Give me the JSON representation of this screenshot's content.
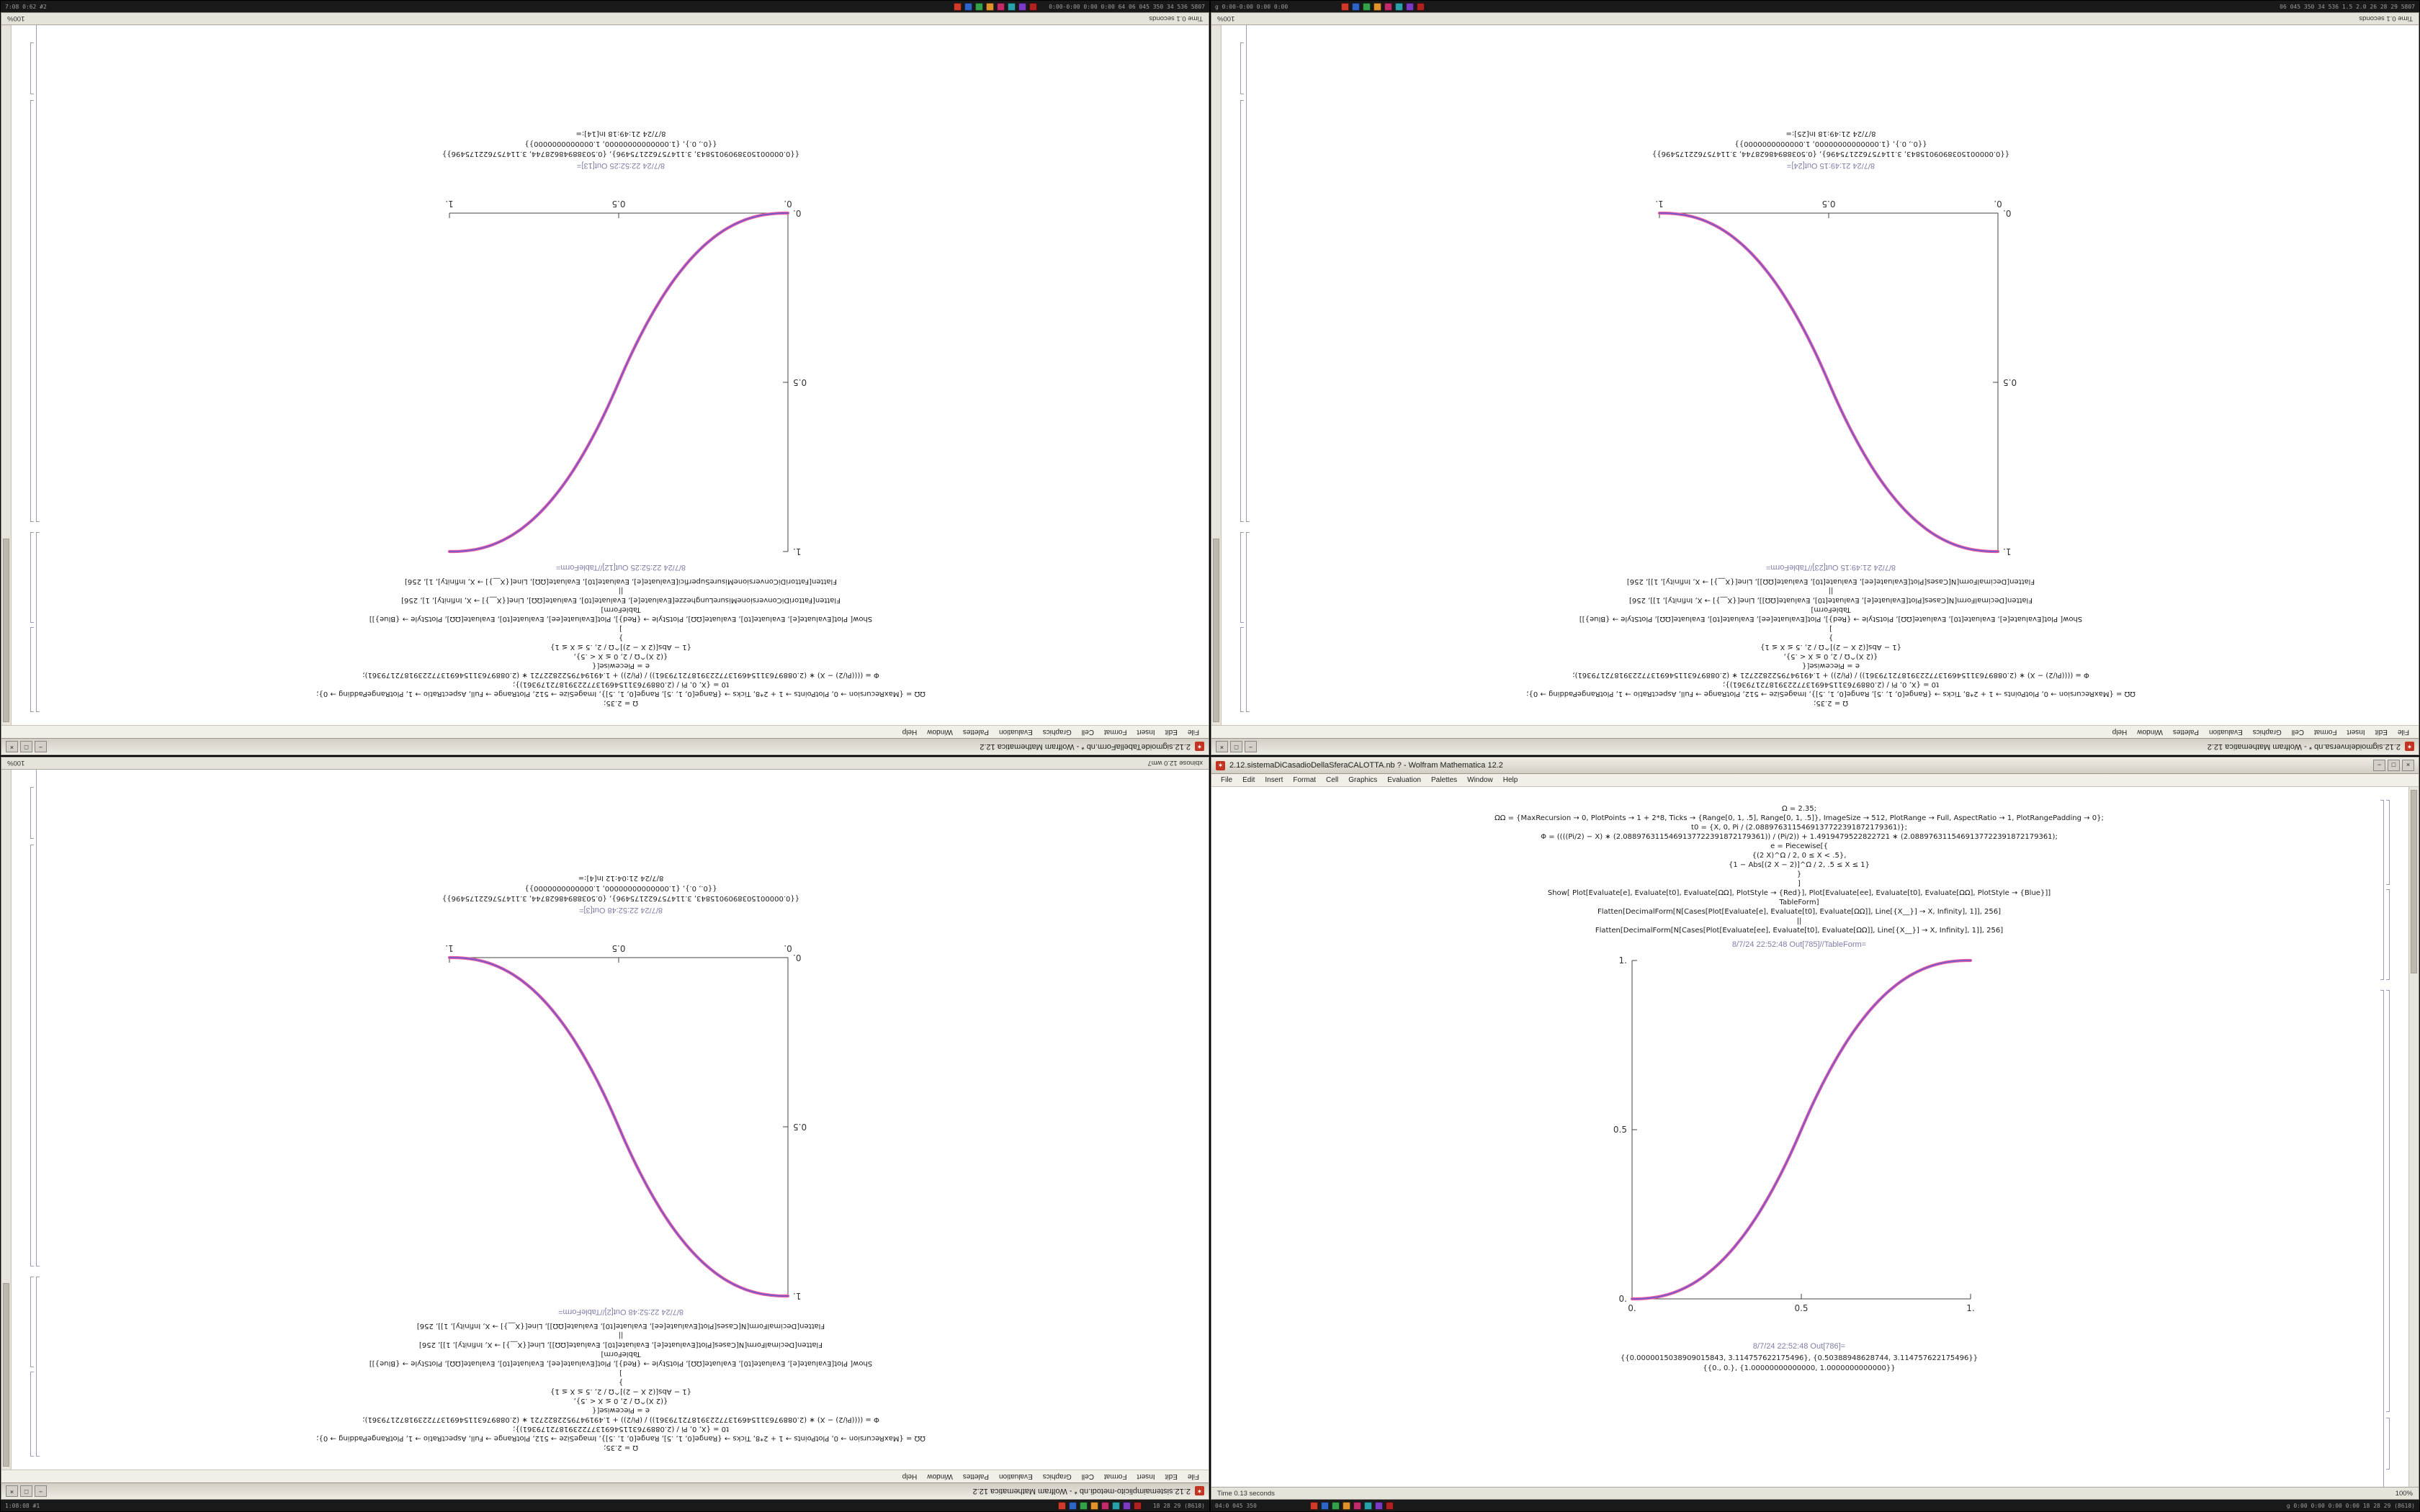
{
  "app": "Wolfram Mathematica 12.2",
  "colors": {
    "curve_red": "#ef5a9d",
    "curve_blue": "#6f5bd0",
    "app_icon_red": "#c33322",
    "chrome_gray": "#d6d2c8",
    "taskbar_bg": "#191919"
  },
  "menu": [
    "File",
    "Edit",
    "Insert",
    "Format",
    "Cell",
    "Graphics",
    "Evaluation",
    "Palettes",
    "Window",
    "Help"
  ],
  "window_buttons": {
    "minimize": "−",
    "maximize": "□",
    "close": "×"
  },
  "app_icon_glyph": "✶",
  "taskbar_icon_colors": [
    "#d03a2b",
    "#2e64c8",
    "#35a04a",
    "#e2922a",
    "#c22a6a",
    "#2aa0a8",
    "#7a3ac2",
    "#b02222"
  ],
  "windows": {
    "tl": {
      "title": "2.12.sigmoideTabellaForm.nb * - Wolfram Mathematica 12.2",
      "code_lines": [
        "Ω = 2.35;",
        "ΩΩ = {MaxRecursion → 0, PlotPoints → 1 + 2*8, Ticks → {Range[0, 1, .5], Range[0, 1, .5]}, ImageSize → 512, PlotRange → Full, AspectRatio → 1, PlotRangePadding → 0};",
        "t0 = {X, 0, Pi / (2.0889763115469137722391872179361)};",
        "Φ = ((((Pi/2) − X) ∗ (2.0889763115469137722391872179361)) / (Pi/2)) + 1.4919479522822721 ∗ (2.0889763115469137722391872179361);",
        "e = Piecewise[{",
        "{(2 X)^Ω / 2,  0 ≤ X < .5},",
        "{1 − Abs[(2 X − 2)]^Ω / 2,  .5 ≤ X ≤ 1}",
        "}",
        "]",
        "Show[ Plot[Evaluate[e], Evaluate[t0], Evaluate[ΩΩ], PlotStyle → {Red}],  Plot[Evaluate[ee], Evaluate[t0], Evaluate[ΩΩ], PlotStyle → {Blue}]]",
        "TableForm]",
        "Flatten[FattoriDiConversioneMisureLunghezze[Evaluate[e], Evaluate[t0], Evaluate[ΩΩ], Line[{X__}] → X, Infinity], 1], 256]",
        "||",
        "Flatten[FattoriDiConversioneMisureSuperfici[Evaluate[e], Evaluate[t0], Evaluate[ΩΩ], Line[{X__}] → X, Infinity], 1], 256]"
      ],
      "out_caption": "8/7/24 22:52:25 Out[12]//TableForm=",
      "out_caption2": "8/7/24 22:52:25 Out[13]=",
      "outputs": [
        "{{0.0000015038909015843, 3.114757622175496}, {0.50388948628744, 3.114757622175496}}",
        "{{0., 0.}, {1.00000000000000, 1.0000000000000}}",
        "8/7/24 21:49:18 In[14]:="
      ],
      "status_left": "Time 0.1 seconds",
      "status_right": "100%",
      "taskbar_left": "7:08 0:62 #2",
      "taskbar_right": "0:00-0:00 0:00 0:00  64 06 045 350  34 536  5807",
      "plot": {
        "type": "line",
        "direction": "asc",
        "omega": 2.35,
        "x_range": [
          0,
          1
        ],
        "y_range": [
          0,
          1
        ],
        "xtick_labels": [
          "0.",
          "0.5",
          "1."
        ],
        "ytick_labels": [
          "0.",
          "0.5",
          "1."
        ]
      }
    },
    "tr": {
      "title": "2.12.sigmoideInversa.nb * - Wolfram Mathematica 12.2",
      "code_lines": [
        "Ω = 2.35;",
        "ΩΩ = {MaxRecursion → 0, PlotPoints → 1 + 2*8, Ticks → {Range[0, 1, .5], Range[0, 1, .5]}, ImageSize → 512, PlotRange → Full, AspectRatio → 1, PlotRangePadding → 0};",
        "t0 = {X, 0, Pi / (2.0889763115469137722391872179361)};",
        "Φ = ((((Pi/2) − X) ∗ (2.0889763115469137722391872179361)) / (Pi/2)) + 1.4919479522822721 ∗ (2.0889763115469137722391872179361);",
        "e = Piecewise[{",
        "{(2 X)^Ω / 2,  0 ≤ X < .5},",
        "{1 − Abs[(2 X − 2)]^Ω / 2,  .5 ≤ X ≤ 1}",
        "}",
        "]",
        "Show[ Plot[Evaluate[e], Evaluate[t0], Evaluate[ΩΩ], PlotStyle → {Red}],  Plot[Evaluate[ee], Evaluate[t0], Evaluate[ΩΩ], PlotStyle → {Blue}]]",
        "TableForm]",
        "Flatten[DecimalForm[N[Cases[Plot[Evaluate[e], Evaluate[t0], Evaluate[ΩΩ]], Line[{X__}] → X, Infinity], 1]], 256]",
        "||",
        "Flatten[DecimalForm[N[Cases[Plot[Evaluate[ee], Evaluate[t0], Evaluate[ΩΩ]], Line[{X__}] → X, Infinity], 1]], 256]"
      ],
      "out_caption": "8/7/24 21:49:15 Out[23]//TableForm=",
      "out_caption2": "8/7/24 21:49:15 Out[24]=",
      "outputs": [
        "{{0.0000015038909015843, 3.114757622175496}, {0.50388948628744, 3.114757622175496}}",
        "{{0., 0.}, {1.00000000000000, 1.0000000000000}}",
        "8/7/24 21:49:18 In[25]:="
      ],
      "status_left": "Time 0.1 seconds",
      "status_right": "100%",
      "taskbar_left": "g 0:00-0:00 0:00 0:00",
      "taskbar_right": "06 045 350  34 536 1.5 2.0  26 28 29  5807",
      "plot": {
        "type": "line",
        "direction": "desc",
        "omega": 2.35,
        "x_range": [
          0,
          1
        ],
        "y_range": [
          0,
          1
        ],
        "xtick_labels": [
          "0.",
          "0.5",
          "1."
        ],
        "ytick_labels": [
          "0.",
          "0.5",
          "1."
        ]
      }
    },
    "bl": {
      "title": "2.12.sistemaimplicito-metodi.nb * - Wolfram Mathematica 12.2",
      "code_lines": [
        "Ω = 2.35;",
        "ΩΩ = {MaxRecursion → 0, PlotPoints → 1 + 2*8, Ticks → {Range[0, 1, .5], Range[0, 1, .5]}, ImageSize → 512, PlotRange → Full, AspectRatio → 1, PlotRangePadding → 0};",
        "t0 = {X, 0, Pi / (2.0889763115469137722391872179361)};",
        "Φ = ((((Pi/2) − X) ∗ (2.0889763115469137722391872179361)) / (Pi/2)) + 1.4919479522822721 ∗ (2.0889763115469137722391872179361);",
        "e = Piecewise[{",
        "{(2 X)^Ω / 2,  0 ≤ X < .5},",
        "{1 − Abs[(2 X − 2)]^Ω / 2,  .5 ≤ X ≤ 1}",
        "}",
        "]",
        "Show[ Plot[Evaluate[e], Evaluate[t0], Evaluate[ΩΩ], PlotStyle → {Red}],  Plot[Evaluate[ee], Evaluate[t0], Evaluate[ΩΩ], PlotStyle → {Blue}]]",
        "TableForm]",
        "Flatten[DecimalForm[N[Cases[Plot[Evaluate[e], Evaluate[t0], Evaluate[ΩΩ]], Line[{X__}] → X, Infinity], 1]], 256]",
        "||",
        "Flatten[DecimalForm[N[Cases[Plot[Evaluate[ee], Evaluate[t0], Evaluate[ΩΩ]], Line[{X__}] → X, Infinity], 1]], 256]"
      ],
      "out_caption": "8/7/24 22:52:48 Out[2]//TableForm=",
      "out_caption2": "8/7/24 22:52:48 Out[3]=",
      "outputs": [
        "{{0.0000015038909015843, 3.114757622175496}, {0.50388948628744, 3.114757622175496}}",
        "{{0., 0.}, {1.00000000000000, 1.0000000000000}}",
        "8/7/24 21:04:12 In[4]:="
      ],
      "status_left": "xbinose 12.0 wm7",
      "status_right": "100%",
      "taskbar_left": "1:08:08 #1",
      "taskbar_right": "18 28 29 (8618)",
      "plot": {
        "type": "line",
        "direction": "desc",
        "omega": 2.35,
        "x_range": [
          0,
          1
        ],
        "y_range": [
          0,
          1
        ],
        "xtick_labels": [
          "0.",
          "0.5",
          "1."
        ],
        "ytick_labels": [
          "0.",
          "0.5",
          "1."
        ]
      }
    },
    "br": {
      "title": "2.12.sistemaDiCasadioDellaSferaCALOTTA.nb ? - Wolfram Mathematica 12.2",
      "code_lines": [
        "Ω = 2.35;",
        "ΩΩ = {MaxRecursion → 0, PlotPoints → 1 + 2*8, Ticks → {Range[0, 1, .5], Range[0, 1, .5]}, ImageSize → 512, PlotRange → Full, AspectRatio → 1, PlotRangePadding → 0};",
        "t0 = {X, 0, Pi / (2.0889763115469137722391872179361)};",
        "Φ = ((((Pi/2) − X) ∗ (2.0889763115469137722391872179361)) / (Pi/2)) + 1.4919479522822721 ∗ (2.0889763115469137722391872179361);",
        "e = Piecewise[{",
        "{(2 X)^Ω / 2,  0 ≤ X < .5},",
        "{1 − Abs[(2 X − 2)]^Ω / 2,  .5 ≤ X ≤ 1}",
        "}",
        "]",
        "Show[ Plot[Evaluate[e], Evaluate[t0], Evaluate[ΩΩ], PlotStyle → {Red}],  Plot[Evaluate[ee], Evaluate[t0], Evaluate[ΩΩ], PlotStyle → {Blue}]]",
        "TableForm]",
        "Flatten[DecimalForm[N[Cases[Plot[Evaluate[e], Evaluate[t0], Evaluate[ΩΩ]], Line[{X__}] → X, Infinity], 1]], 256]",
        "||",
        "Flatten[DecimalForm[N[Cases[Plot[Evaluate[ee], Evaluate[t0], Evaluate[ΩΩ]], Line[{X__}] → X, Infinity], 1]], 256]"
      ],
      "out_caption": "8/7/24 22:52:48 Out[785]//TableForm=",
      "out_caption2": "8/7/24 22:52:48 Out[786]=",
      "outputs": [
        "{{0.0000015038909015843, 3.114757622175496}, {0.50388948628744, 3.114757622175496}}",
        "{{0., 0.}, {1.00000000000000, 1.0000000000000}}"
      ],
      "status_left": "Time 0.13 seconds",
      "status_right": "100%",
      "taskbar_left": "04:0 045 350",
      "taskbar_right": "g 0:00 0:00 0:00 0:00  18 28 29 (8618)",
      "plot": {
        "type": "line",
        "direction": "asc",
        "omega": 2.35,
        "x_range": [
          0,
          1
        ],
        "y_range": [
          0,
          1
        ],
        "xtick_labels": [
          "0.",
          "0.5",
          "1."
        ],
        "ytick_labels": [
          "0.",
          "0.5",
          "1."
        ]
      }
    }
  }
}
